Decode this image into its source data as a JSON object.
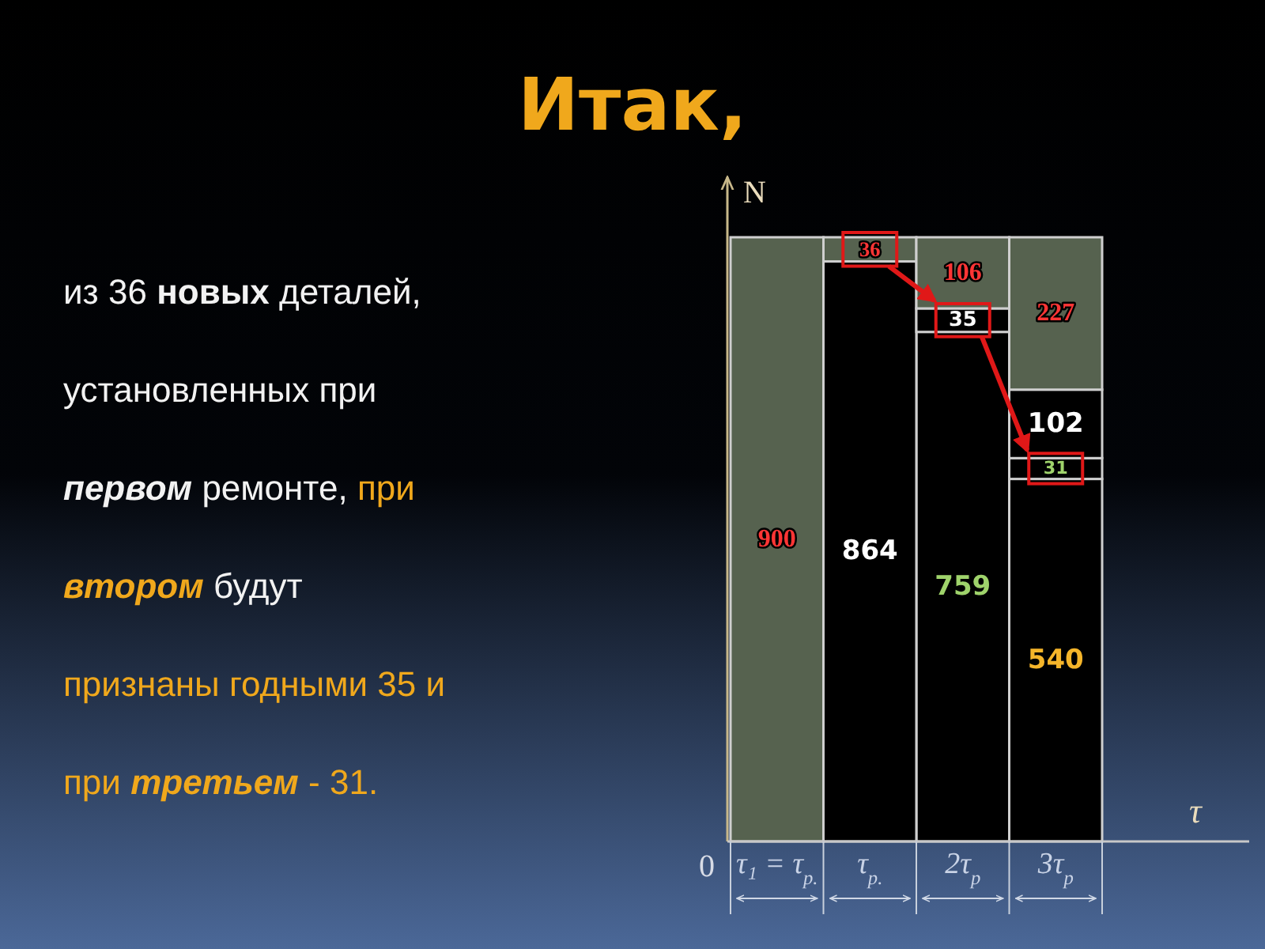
{
  "chart_data": {
    "type": "bar",
    "stacked": true,
    "title": "Итак,",
    "xlabel": "τ",
    "ylabel": "N",
    "categories": [
      "τ₁ = τ$_{р.}$",
      "τ$_{р.}$",
      "2τ$_{р}$",
      "3τ$_{р}$"
    ],
    "series": [
      {
        "color": "#000000",
        "values": [
          null,
          null,
          null,
          540
        ]
      },
      {
        "color": "#000000",
        "values": [
          null,
          null,
          759,
          31
        ]
      },
      {
        "color": "#000000",
        "values": [
          null,
          864,
          35,
          102
        ]
      },
      {
        "color": "#56624f",
        "values": [
          900,
          36,
          106,
          227
        ]
      }
    ],
    "data_labels": true,
    "annotations": [
      "из 36 новых деталей,\nустановленных при\nпервом ремонте, при\nвтором будут\nпризнаны годными 35 и\nпри третьем - 31.",
      "0"
    ]
  }
}
